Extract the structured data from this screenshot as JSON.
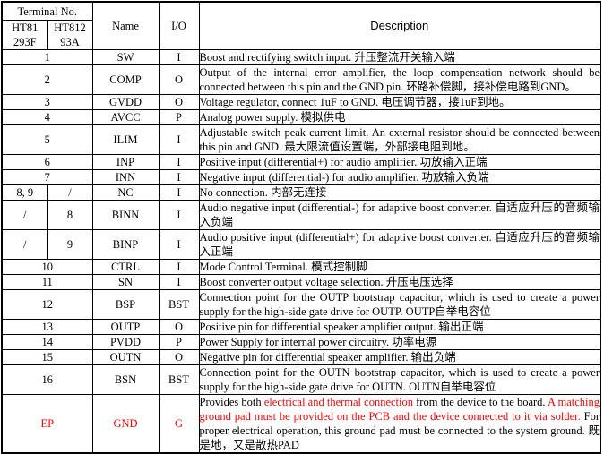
{
  "colors": {
    "border": "#000000",
    "text": "#000000",
    "highlight_red": "#FF0000"
  },
  "header": {
    "terminal_no": "Terminal No.",
    "part_a": "HT81\n293F",
    "part_b": "HT812\n93A",
    "name": "Name",
    "io": "I/O",
    "description": "Description"
  },
  "rows": [
    {
      "terminal": "1",
      "name": "SW",
      "io": "I",
      "desc": "Boost and rectifying switch input.  升压整流开关输入端"
    },
    {
      "terminal": "2",
      "name": "COMP",
      "io": "O",
      "desc": "Output of the internal error amplifier, the loop compensation network should be connected between this pin and the GND pin.  环路补偿脚，接补偿电路到GND。"
    },
    {
      "terminal": "3",
      "name": "GVDD",
      "io": "O",
      "desc": "Voltage regulator, connect 1uF to GND. 电压调节器，接1uF到地。"
    },
    {
      "terminal": "4",
      "name": "AVCC",
      "io": "P",
      "desc": "Analog power supply.  模拟供电"
    },
    {
      "terminal": "5",
      "name": "ILIM",
      "io": "I",
      "desc": "Adjustable switch peak current limit. An external resistor should be connected between this pin and GND. 最大限流值设置端，外部接电阻到地。"
    },
    {
      "terminal": "6",
      "name": "INP",
      "io": "I",
      "desc": "Positive input (differential+) for audio amplifier.  功放输入正端"
    },
    {
      "terminal": "7",
      "name": "INN",
      "io": "I",
      "desc": "Negative input (differential-) for audio amplifier.  功放输入负端"
    },
    {
      "terminal_f": "8, 9",
      "terminal_a": "/",
      "name": "NC",
      "io": "I",
      "desc": "No connection.  内部无连接"
    },
    {
      "terminal_f": "/",
      "terminal_a": "8",
      "name": "BINN",
      "io": "I",
      "desc": "Audio negative input (differential-) for adaptive boost converter.  自适应升压的音频输入负端"
    },
    {
      "terminal_f": "/",
      "terminal_a": "9",
      "name": "BINP",
      "io": "I",
      "desc": "Audio positive input (differential+) for adaptive boost converter.  自适应升压的音频输入正端"
    },
    {
      "terminal": "10",
      "name": "CTRL",
      "io": "I",
      "desc": "Mode Control Terminal.  模式控制脚"
    },
    {
      "terminal": "11",
      "name": "SN",
      "io": "I",
      "desc": "Boost converter output voltage selection.  升压电压选择"
    },
    {
      "terminal": "12",
      "name": "BSP",
      "io": "BST",
      "desc": "Connection point for the OUTP bootstrap capacitor, which is used to create a power supply for the high-side gate drive for OUTP. OUTP自举电容位"
    },
    {
      "terminal": "13",
      "name": "OUTP",
      "io": "O",
      "desc": "Positive pin for differential speaker amplifier output.  输出正端"
    },
    {
      "terminal": "14",
      "name": "PVDD",
      "io": "P",
      "desc": "Power Supply for internal power circuitry.  功率电源"
    },
    {
      "terminal": "15",
      "name": "OUTN",
      "io": "O",
      "desc": "Negative pin for differential speaker amplifier.  输出负端"
    },
    {
      "terminal": "16",
      "name": "BSN",
      "io": "BST",
      "desc": "Connection point for the OUTN bootstrap capacitor, which is used to create a power supply for the high-side gate drive for OUTN. OUTN自举电容位"
    },
    {
      "terminal": "EP",
      "name": "GND",
      "io": "G",
      "color": "#FF0000",
      "desc_segments": [
        {
          "text": "Provides both ",
          "color": "#000000"
        },
        {
          "text": "electrical  and thermal connection ",
          "color": "#FF0000"
        },
        {
          "text": "from the device to the board. ",
          "color": "#000000"
        },
        {
          "text": "A matching ground pad must be provided on the PCB and the device connected to it via solder. ",
          "color": "#FF0000"
        },
        {
          "text": "For proper electrical  operation,  this ground pad must be connected  to the system ground. 既是地，又是散热PAD",
          "color": "#000000"
        }
      ]
    }
  ]
}
